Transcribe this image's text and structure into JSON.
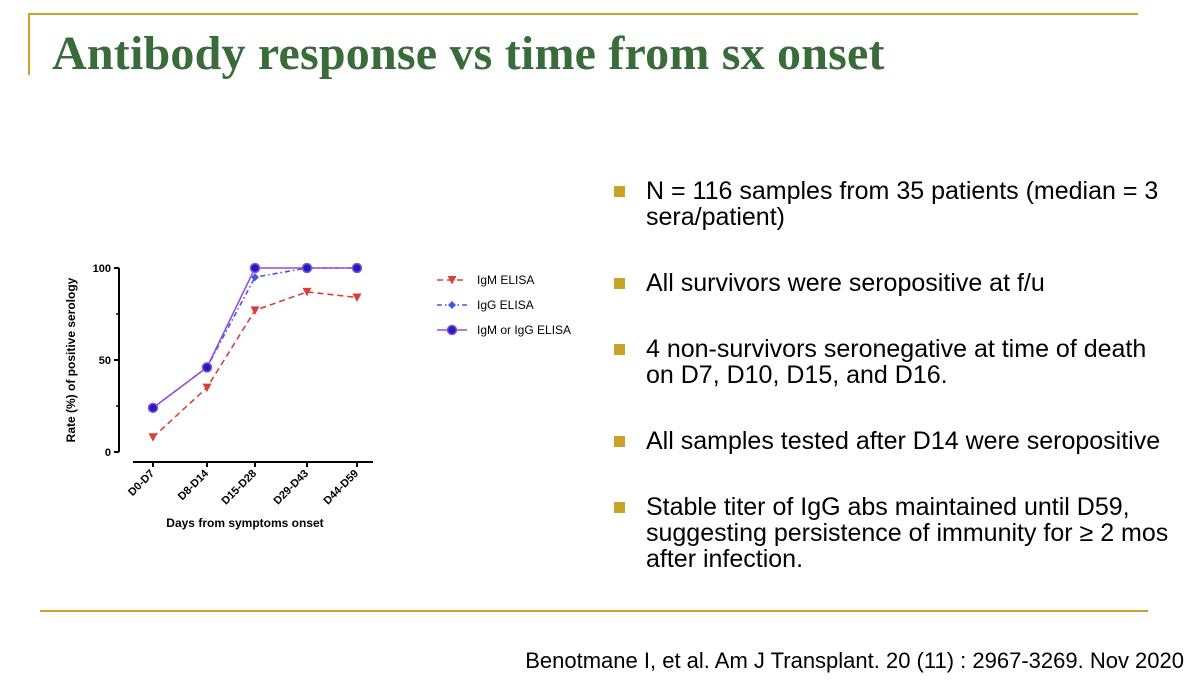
{
  "slide": {
    "title": "Antibody response vs time from sx onset",
    "citation": "Benotmane I, et al. Am J Transplant. 20 (11) : 2967-3269. Nov 2020",
    "accent_color": "#c9a227",
    "title_color": "#3a6b3a"
  },
  "bullets": [
    "N = 116 samples from 35 patients (median = 3 sera/patient)",
    "All survivors were seropositive at f/u",
    "4 non-survivors seronegative at time of death on D7, D10, D15, and D16.",
    "All samples tested after D14 were seropositive",
    "Stable titer of IgG abs maintained until D59, suggesting persistence of immunity for ≥ 2 mos after infection."
  ],
  "chart_data": {
    "type": "line",
    "title": "",
    "xlabel": "Days from symptoms onset",
    "ylabel": "Rate (%) of positive serology",
    "categories": [
      "D0-D7",
      "D8-D14",
      "D15-D28",
      "D29-D43",
      "D44-D59"
    ],
    "ylim": [
      0,
      100
    ],
    "yticks": [
      0,
      50,
      100
    ],
    "legend_position": "right",
    "series": [
      {
        "name": "IgM ELISA",
        "values": [
          8,
          35,
          77,
          87,
          84
        ],
        "color": "#d9403a",
        "marker": "triangle-down",
        "dash": "dashed"
      },
      {
        "name": "IgG ELISA",
        "values": [
          24,
          46,
          95,
          100,
          100
        ],
        "color": "#3f5be0",
        "marker": "diamond",
        "dash": "dash-dot"
      },
      {
        "name": "IgM or IgG ELISA",
        "values": [
          24,
          46,
          100,
          100,
          100
        ],
        "color": "#9b4fd6",
        "marker": "circle",
        "dash": "solid"
      }
    ]
  }
}
